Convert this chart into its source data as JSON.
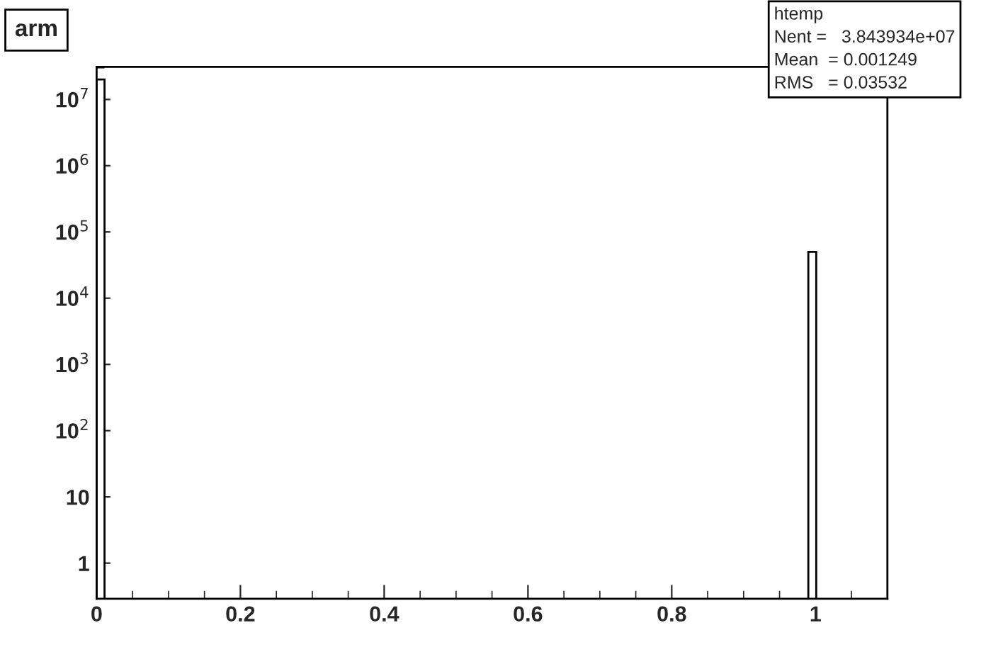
{
  "chart_data": {
    "type": "histogram",
    "title": "arm",
    "bins": [
      0,
      0.011,
      0.99,
      1.001
    ],
    "values": [
      20000000.0,
      null,
      50000.0
    ],
    "color": "#ffffff",
    "log": "y",
    "xlim": [
      0,
      1.1
    ],
    "xticks": [
      0,
      0.2,
      0.4,
      0.6,
      0.8,
      1
    ],
    "ylim": [
      0.29,
      31000000.0
    ],
    "yticks": [
      1,
      10,
      {
        "value": 100,
        "label": "10$^{2}$"
      },
      {
        "value": 1000,
        "label": "10$^{3}$"
      },
      {
        "value": 10000,
        "label": "10$^{4}$"
      },
      {
        "value": 100000,
        "label": "10$^{5}$"
      },
      {
        "value": 1000000,
        "label": "10$^{6}$"
      },
      {
        "value": 10000000,
        "label": "10$^{7}$"
      }
    ],
    "grid": false,
    "annotations": [
      "htemp",
      "Nent =   3.843934e+07",
      "Mean  = 0.001249",
      "RMS   = 0.03532"
    ]
  }
}
